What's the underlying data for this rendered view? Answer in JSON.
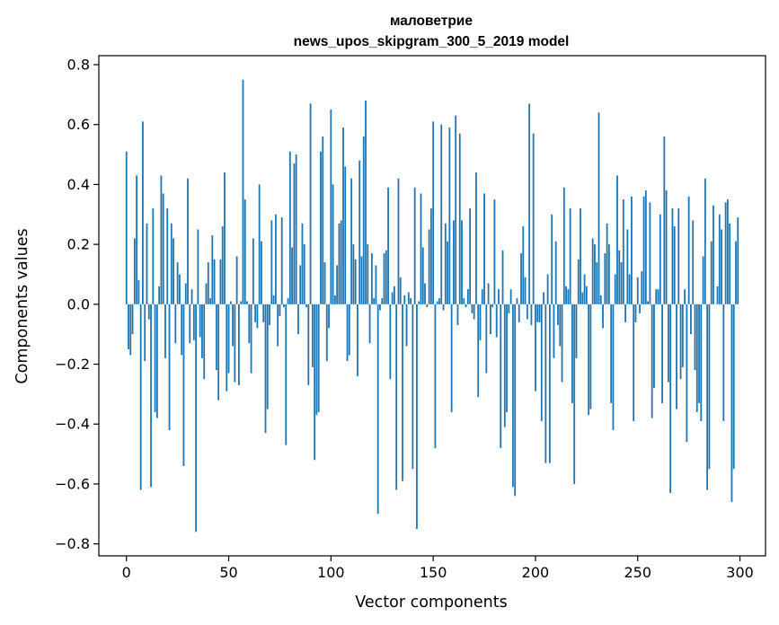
{
  "chart_data": {
    "type": "bar",
    "title_line1": "маловетрие",
    "title_line2": "news_upos_skipgram_300_5_2019 model",
    "xlabel": "Vector components",
    "ylabel": "Components values",
    "xlim": [
      -13.5,
      312.5
    ],
    "ylim": [
      -0.84,
      0.83
    ],
    "xticks": [
      0,
      50,
      100,
      150,
      200,
      250,
      300
    ],
    "yticks": [
      -0.8,
      -0.6,
      -0.4,
      -0.2,
      0.0,
      0.2,
      0.4,
      0.6,
      0.8
    ],
    "bar_color": "#1f77b4",
    "grid": false,
    "x": [
      0,
      1,
      2,
      3,
      4,
      5,
      6,
      7,
      8,
      9,
      10,
      11,
      12,
      13,
      14,
      15,
      16,
      17,
      18,
      19,
      20,
      21,
      22,
      23,
      24,
      25,
      26,
      27,
      28,
      29,
      30,
      31,
      32,
      33,
      34,
      35,
      36,
      37,
      38,
      39,
      40,
      41,
      42,
      43,
      44,
      45,
      46,
      47,
      48,
      49,
      50,
      51,
      52,
      53,
      54,
      55,
      56,
      57,
      58,
      59,
      60,
      61,
      62,
      63,
      64,
      65,
      66,
      67,
      68,
      69,
      70,
      71,
      72,
      73,
      74,
      75,
      76,
      77,
      78,
      79,
      80,
      81,
      82,
      83,
      84,
      85,
      86,
      87,
      88,
      89,
      90,
      91,
      92,
      93,
      94,
      95,
      96,
      97,
      98,
      99,
      100,
      101,
      102,
      103,
      104,
      105,
      106,
      107,
      108,
      109,
      110,
      111,
      112,
      113,
      114,
      115,
      116,
      117,
      118,
      119,
      120,
      121,
      122,
      123,
      124,
      125,
      126,
      127,
      128,
      129,
      130,
      131,
      132,
      133,
      134,
      135,
      136,
      137,
      138,
      139,
      140,
      141,
      142,
      143,
      144,
      145,
      146,
      147,
      148,
      149,
      150,
      151,
      152,
      153,
      154,
      155,
      156,
      157,
      158,
      159,
      160,
      161,
      162,
      163,
      164,
      165,
      166,
      167,
      168,
      169,
      170,
      171,
      172,
      173,
      174,
      175,
      176,
      177,
      178,
      179,
      180,
      181,
      182,
      183,
      184,
      185,
      186,
      187,
      188,
      189,
      190,
      191,
      192,
      193,
      194,
      195,
      196,
      197,
      198,
      199,
      200,
      201,
      202,
      203,
      204,
      205,
      206,
      207,
      208,
      209,
      210,
      211,
      212,
      213,
      214,
      215,
      216,
      217,
      218,
      219,
      220,
      221,
      222,
      223,
      224,
      225,
      226,
      227,
      228,
      229,
      230,
      231,
      232,
      233,
      234,
      235,
      236,
      237,
      238,
      239,
      240,
      241,
      242,
      243,
      244,
      245,
      246,
      247,
      248,
      249,
      250,
      251,
      252,
      253,
      254,
      255,
      256,
      257,
      258,
      259,
      260,
      261,
      262,
      263,
      264,
      265,
      266,
      267,
      268,
      269,
      270,
      271,
      272,
      273,
      274,
      275,
      276,
      277,
      278,
      279,
      280,
      281,
      282,
      283,
      284,
      285,
      286,
      287,
      288,
      289,
      290,
      291,
      292,
      293,
      294,
      295,
      296,
      297,
      298,
      299
    ],
    "values": [
      0.51,
      -0.15,
      -0.17,
      -0.1,
      0.22,
      0.43,
      0.08,
      -0.62,
      0.61,
      -0.19,
      0.27,
      -0.05,
      -0.61,
      0.32,
      -0.36,
      -0.38,
      0.06,
      0.43,
      0.37,
      -0.18,
      0.32,
      -0.42,
      0.27,
      0.22,
      -0.13,
      0.14,
      0.1,
      -0.17,
      -0.54,
      0.07,
      0.42,
      -0.13,
      0.05,
      -0.12,
      -0.76,
      0.25,
      -0.11,
      -0.18,
      -0.25,
      0.07,
      0.14,
      0.02,
      0.23,
      0.15,
      -0.22,
      -0.32,
      0.15,
      0.26,
      0.44,
      -0.29,
      -0.23,
      0.01,
      -0.14,
      -0.26,
      0.16,
      -0.27,
      0.01,
      0.75,
      0.35,
      0.01,
      -0.13,
      -0.23,
      0.22,
      -0.06,
      -0.08,
      0.4,
      0.21,
      -0.06,
      -0.43,
      -0.35,
      -0.07,
      0.28,
      0.03,
      0.3,
      -0.14,
      -0.04,
      0.29,
      -0.01,
      -0.47,
      0.02,
      0.51,
      0.19,
      0.47,
      0.5,
      -0.1,
      0.13,
      0.27,
      0.2,
      -0.01,
      -0.27,
      0.67,
      -0.21,
      -0.52,
      -0.37,
      -0.36,
      0.51,
      0.56,
      0.14,
      -0.19,
      -0.08,
      0.65,
      0.4,
      0.03,
      0.13,
      0.27,
      0.28,
      0.59,
      0.46,
      -0.19,
      -0.17,
      0.42,
      0.2,
      0.15,
      -0.24,
      0.48,
      0.16,
      0.56,
      0.68,
      0.2,
      -0.13,
      0.17,
      0.02,
      0.13,
      -0.7,
      -0.02,
      0.02,
      0.17,
      0.18,
      0.39,
      -0.25,
      0.04,
      0.06,
      -0.62,
      0.42,
      0.09,
      -0.59,
      0.03,
      -0.14,
      0.04,
      0.02,
      -0.55,
      0.39,
      -0.75,
      0.01,
      0.37,
      0.19,
      0.07,
      -0.01,
      0.25,
      0.32,
      0.61,
      -0.48,
      0.01,
      0.02,
      0.6,
      -0.02,
      0.27,
      0.21,
      0.59,
      -0.36,
      0.28,
      0.63,
      -0.07,
      0.57,
      0.28,
      0.02,
      -0.01,
      0.05,
      0.32,
      -0.03,
      -0.05,
      0.44,
      -0.31,
      -0.12,
      0.05,
      0.37,
      -0.23,
      0.07,
      -0.1,
      -0.01,
      0.35,
      -0.11,
      0.05,
      -0.48,
      0.18,
      -0.41,
      -0.36,
      -0.03,
      0.05,
      -0.61,
      -0.64,
      0.02,
      -0.06,
      0.17,
      0.26,
      0.09,
      -0.05,
      0.67,
      -0.07,
      0.57,
      -0.29,
      -0.06,
      -0.06,
      -0.39,
      0.04,
      -0.53,
      0.1,
      -0.53,
      0.3,
      -0.18,
      0.21,
      -0.07,
      -0.14,
      -0.26,
      0.39,
      0.06,
      0.05,
      0.32,
      -0.33,
      -0.6,
      -0.18,
      0.15,
      0.32,
      0.04,
      0.1,
      0.06,
      -0.37,
      -0.35,
      0.22,
      0.2,
      0.14,
      0.64,
      0.03,
      -0.08,
      0.17,
      0.27,
      0.2,
      -0.33,
      -0.42,
      0.1,
      0.43,
      0.18,
      0.14,
      0.35,
      -0.06,
      0.25,
      0.1,
      0.36,
      -0.39,
      -0.06,
      0.09,
      -0.03,
      0.11,
      0.36,
      0.38,
      0.01,
      0.34,
      -0.38,
      -0.28,
      0.05,
      0.05,
      0.3,
      -0.33,
      0.56,
      0.38,
      -0.26,
      -0.63,
      0.32,
      0.26,
      -0.35,
      0.32,
      -0.25,
      -0.21,
      0.05,
      -0.46,
      0.36,
      -0.1,
      0.28,
      -0.22,
      -0.36,
      -0.33,
      -0.39,
      0.16,
      0.42,
      -0.62,
      -0.55,
      0.21,
      0.33,
      0.0,
      0.06,
      0.3,
      0.25,
      -0.39,
      0.34,
      0.35,
      0.27,
      -0.66,
      -0.55,
      0.21,
      0.29
    ]
  }
}
